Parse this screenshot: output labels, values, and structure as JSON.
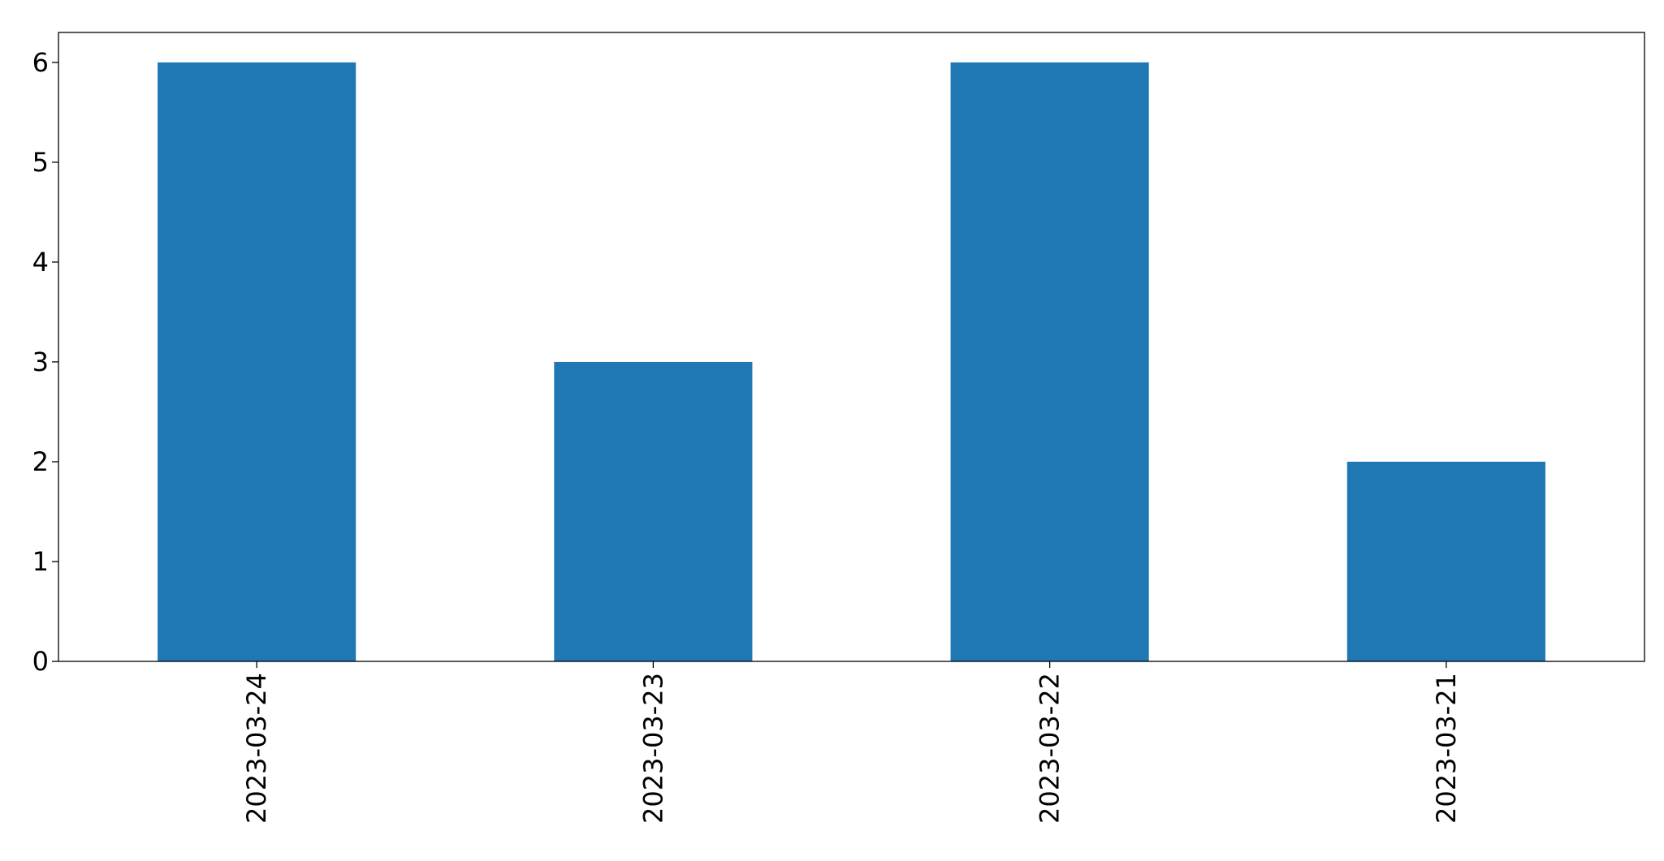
{
  "chart_data": {
    "type": "bar",
    "title": "",
    "xlabel": "",
    "ylabel": "",
    "categories": [
      "2023-03-24",
      "2023-03-23",
      "2023-03-22",
      "2023-03-21"
    ],
    "values": [
      6,
      3,
      6,
      2
    ],
    "ylim": [
      0,
      6.3
    ],
    "yticks": [
      0,
      1,
      2,
      3,
      4,
      5,
      6
    ],
    "grid": false,
    "legend": "none",
    "x_tick_rotation": "vertical",
    "bar_color": "#1f77b4"
  }
}
